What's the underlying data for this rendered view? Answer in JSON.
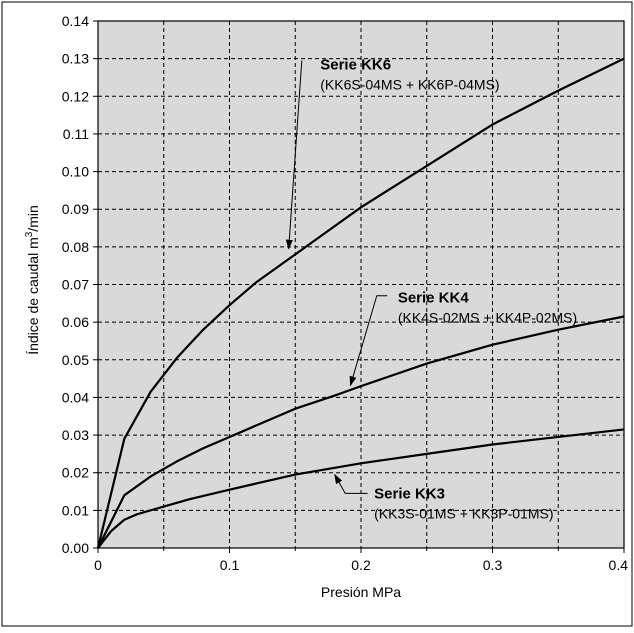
{
  "chart_data": {
    "type": "line",
    "title": "",
    "xlabel": "Presión MPa",
    "ylabel_prefix": "Índice de caudal m",
    "ylabel_sup": "3",
    "ylabel_suffix": "/min",
    "xlim": [
      0,
      0.4
    ],
    "ylim": [
      0,
      0.14
    ],
    "grid": true,
    "background_color": "#d9d9d9",
    "line_color": "#000000",
    "x_ticks": [
      0,
      0.1,
      0.2,
      0.3,
      0.4
    ],
    "x_tick_labels": [
      "0",
      "0.1",
      "0.2",
      "0.3",
      "0.4"
    ],
    "x_minor_ticks": [
      0.05,
      0.15,
      0.25,
      0.35
    ],
    "y_ticks": [
      0,
      0.01,
      0.02,
      0.03,
      0.04,
      0.05,
      0.06,
      0.07,
      0.08,
      0.09,
      0.1,
      0.11,
      0.12,
      0.13,
      0.14
    ],
    "y_tick_labels": [
      "0.00",
      "0.01",
      "0.02",
      "0.03",
      "0.04",
      "0.05",
      "0.06",
      "0.07",
      "0.08",
      "0.09",
      "0.10",
      "0.11",
      "0.12",
      "0.13",
      "0.14"
    ],
    "series": [
      {
        "name": "Serie KK6",
        "model": "(KK6S-04MS + KK6P-04MS)",
        "x": [
          0,
          0.02,
          0.04,
          0.06,
          0.08,
          0.1,
          0.12,
          0.15,
          0.18,
          0.2,
          0.25,
          0.3,
          0.35,
          0.4
        ],
        "y": [
          0,
          0.029,
          0.0415,
          0.0505,
          0.058,
          0.0645,
          0.0705,
          0.078,
          0.0855,
          0.0905,
          0.1015,
          0.1125,
          0.1215,
          0.13
        ]
      },
      {
        "name": "Serie KK4",
        "model": "(KK4S-02MS + KK4P-02MS)",
        "x": [
          0,
          0.02,
          0.04,
          0.06,
          0.08,
          0.1,
          0.12,
          0.15,
          0.18,
          0.2,
          0.25,
          0.3,
          0.35,
          0.4
        ],
        "y": [
          0,
          0.014,
          0.019,
          0.023,
          0.0265,
          0.0295,
          0.0325,
          0.037,
          0.0405,
          0.043,
          0.049,
          0.054,
          0.058,
          0.0615
        ]
      },
      {
        "name": "Serie KK3",
        "model": "(KK3S-01MS + KK3P-01MS)",
        "x": [
          0,
          0.01,
          0.02,
          0.03,
          0.05,
          0.07,
          0.1,
          0.15,
          0.2,
          0.25,
          0.3,
          0.35,
          0.4
        ],
        "y": [
          0,
          0.0045,
          0.0075,
          0.009,
          0.011,
          0.013,
          0.0155,
          0.0195,
          0.0225,
          0.025,
          0.0275,
          0.0295,
          0.0315
        ]
      }
    ],
    "annotations": [
      {
        "series": 0,
        "text_x": 0.169,
        "text_y": 0.1285,
        "arrow_from": [
          0.155,
          0.1295
        ],
        "arrow_via": [
          0.155,
          0.1295
        ],
        "arrow_to": [
          0.145,
          0.0795
        ]
      },
      {
        "series": 1,
        "text_x": 0.228,
        "text_y": 0.0665,
        "arrow_from": [
          0.22,
          0.067
        ],
        "arrow_via": [
          0.212,
          0.067
        ],
        "arrow_to": [
          0.192,
          0.0432
        ]
      },
      {
        "series": 2,
        "text_x": 0.21,
        "text_y": 0.0145,
        "arrow_from": [
          0.205,
          0.0145
        ],
        "arrow_via": [
          0.188,
          0.0145
        ],
        "arrow_to": [
          0.18,
          0.0195
        ]
      }
    ]
  }
}
